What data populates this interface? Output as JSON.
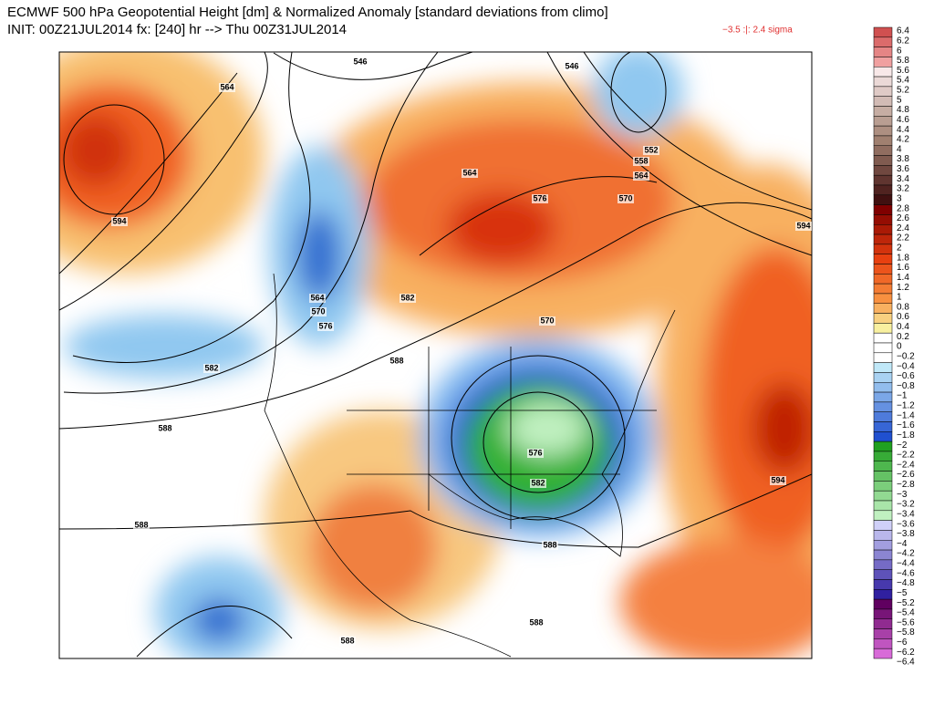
{
  "header": {
    "title": "ECMWF 500 hPa Geopotential Height [dm] & Normalized Anomaly [standard deviations from climo]",
    "init": "INIT: 00Z21JUL2014 fx: [240] hr --> Thu 00Z31JUL2014",
    "range": "−3.5 :|:  2.4 sigma"
  },
  "map": {
    "contour_labels": [
      "546",
      "546",
      "552",
      "558",
      "564",
      "570",
      "594",
      "576",
      "564",
      "564",
      "594",
      "564",
      "570",
      "576",
      "582",
      "582",
      "588",
      "570",
      "588",
      "576",
      "582",
      "594",
      "588",
      "588",
      "588",
      "588"
    ]
  },
  "colorbar": {
    "labels": [
      "6.4",
      "6.2",
      "6",
      "5.8",
      "5.6",
      "5.4",
      "5.2",
      "5",
      "4.8",
      "4.6",
      "4.4",
      "4.2",
      "4",
      "3.8",
      "3.6",
      "3.4",
      "3.2",
      "3",
      "2.8",
      "2.6",
      "2.4",
      "2.2",
      "2",
      "1.8",
      "1.6",
      "1.4",
      "1.2",
      "1",
      "0.8",
      "0.6",
      "0.4",
      "0.2",
      "0",
      "−0.2",
      "−0.4",
      "−0.6",
      "−0.8",
      "−1",
      "−1.2",
      "−1.4",
      "−1.6",
      "−1.8",
      "−2",
      "−2.2",
      "−2.4",
      "−2.6",
      "−2.8",
      "−3",
      "−3.2",
      "−3.4",
      "−3.6",
      "−3.8",
      "−4",
      "−4.2",
      "−4.4",
      "−4.6",
      "−4.8",
      "−5",
      "−5.2",
      "−5.4",
      "−5.6",
      "−5.8",
      "−6",
      "−6.2",
      "−6.4"
    ]
  }
}
